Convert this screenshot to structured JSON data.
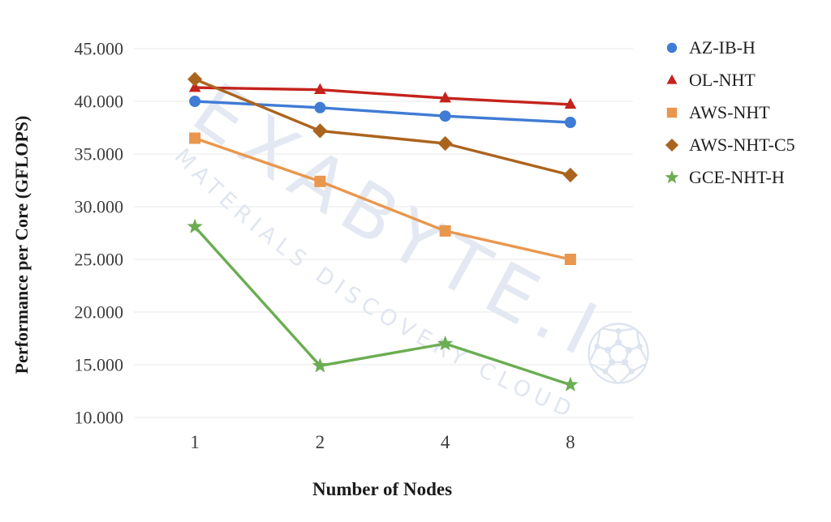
{
  "chart_data": {
    "type": "line",
    "title": "",
    "xlabel": "Number of Nodes",
    "ylabel": "Performance per Core (GFLOPS)",
    "categories": [
      "1",
      "2",
      "4",
      "8"
    ],
    "ylim": [
      10000,
      45000
    ],
    "grid": "horizontal-only",
    "legend_position": "right",
    "y_ticks": [
      {
        "value": 45000,
        "label": "45.000"
      },
      {
        "value": 40000,
        "label": "40.000"
      },
      {
        "value": 35000,
        "label": "35.000"
      },
      {
        "value": 30000,
        "label": "30.000"
      },
      {
        "value": 25000,
        "label": "25.000"
      },
      {
        "value": 20000,
        "label": "20.000"
      },
      {
        "value": 15000,
        "label": "15.000"
      },
      {
        "value": 10000,
        "label": "10.000"
      }
    ],
    "series": [
      {
        "name": "AZ-IB-H",
        "marker": "circle",
        "color": "#407bd4",
        "values": [
          40000,
          39400,
          38600,
          38000
        ]
      },
      {
        "name": "OL-NHT",
        "marker": "triangle",
        "color": "#c4231d",
        "values": [
          41300,
          41100,
          40300,
          39700
        ]
      },
      {
        "name": "AWS-NHT",
        "marker": "square",
        "color": "#e9974e",
        "values": [
          36500,
          32400,
          27700,
          25000
        ]
      },
      {
        "name": "AWS-NHT-C5",
        "marker": "diamond",
        "color": "#ab641e",
        "values": [
          42100,
          37200,
          36000,
          33000
        ]
      },
      {
        "name": "GCE-NHT-H",
        "marker": "star",
        "color": "#6bad52",
        "values": [
          28100,
          14900,
          17000,
          13100
        ]
      }
    ]
  },
  "watermark": {
    "primary_text": "EXABYTE.I",
    "secondary_text": "MATERIALS DISCOVERY CLOUD",
    "icon": "fullerene-ball-icon",
    "color_primary": "#e3e8f2",
    "color_secondary": "#e0e6f0",
    "color_icon": "#dde4ef"
  },
  "style": {
    "grid_color": "#ededed",
    "tick_text_color": "#3d3d3d",
    "axis_title_color": "#1a1a1a",
    "legend_text_color": "#1f1f1f",
    "background": "#ffffff"
  }
}
